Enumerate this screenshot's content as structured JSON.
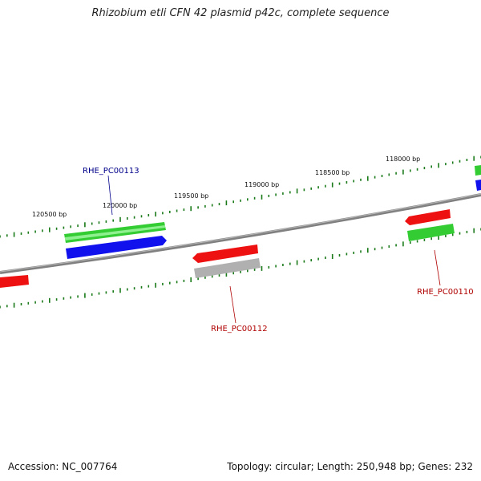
{
  "title": "Rhizobium etli CFN 42 plasmid p42c, complete sequence",
  "footer": {
    "accession": "Accession: NC_007764",
    "summary": "Topology: circular; Length: 250,948 bp; Genes: 232"
  },
  "colors": {
    "backbone": "#808080",
    "tick": "#1a7a1a",
    "red_gene": "#ee1111",
    "green_gene": "#33cc33",
    "blue_gene": "#1111ee",
    "grey_gene": "#b0b0b0",
    "label_blue": "#00008b",
    "label_red": "#b00000"
  },
  "tick_labels": [
    "120500 bp",
    "120000 bp",
    "119500 bp",
    "119000 bp",
    "118500 bp",
    "118000 bp"
  ],
  "gene_labels": [
    "RHE_PC00113",
    "RHE_PC00112",
    "RHE_PC00110"
  ]
}
